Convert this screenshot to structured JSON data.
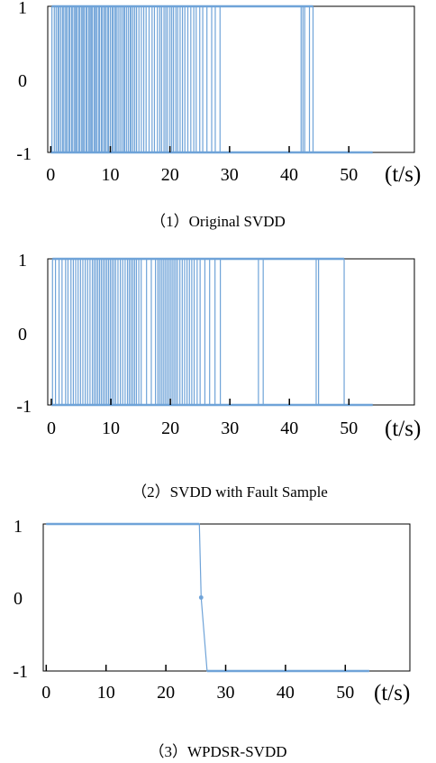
{
  "colors": {
    "series": "#6fa3d8",
    "axis": "#000000",
    "background": "#ffffff"
  },
  "chart_data": [
    {
      "type": "line",
      "caption": "（1）Original  SVDD",
      "xunit": "(t/s)",
      "xticks": [
        0,
        10,
        20,
        30,
        40,
        50
      ],
      "yticks": [
        1,
        0,
        -1
      ],
      "xlim": [
        -0.5,
        61
      ],
      "ylim": [
        -1,
        1
      ],
      "grid": false,
      "legend": "none",
      "x_end": 54,
      "baseline": -1,
      "spikes": [
        0.2,
        0.6,
        0.9,
        1.2,
        1.4,
        1.7,
        2.0,
        2.2,
        2.5,
        2.7,
        3.0,
        3.2,
        3.5,
        3.7,
        4.0,
        4.2,
        4.4,
        4.7,
        4.9,
        5.2,
        5.4,
        5.6,
        5.9,
        6.1,
        6.4,
        6.6,
        6.8,
        7.0,
        7.3,
        7.5,
        7.7,
        8.0,
        8.2,
        8.5,
        8.7,
        9.0,
        9.2,
        9.5,
        9.7,
        10.0,
        10.3,
        10.5,
        10.8,
        11.0,
        11.3,
        11.6,
        11.9,
        12.2,
        12.4,
        12.7,
        13.0,
        13.3,
        13.5,
        13.8,
        14.1,
        14.4,
        14.8,
        15.2,
        15.6,
        16.0,
        16.5,
        17.0,
        17.4,
        17.9,
        18.3,
        18.6,
        19.0,
        19.3,
        19.6,
        20.0,
        20.3,
        20.6,
        21.0,
        21.3,
        21.7,
        22.1,
        22.5,
        23.0,
        23.5,
        24.0,
        24.4,
        25.0,
        25.5,
        26.2,
        27.0,
        27.6,
        28.4,
        42.0,
        42.3,
        42.6,
        43.4,
        44.0
      ]
    },
    {
      "type": "line",
      "caption": "（2）SVDD  with  Fault  Sample",
      "xunit": "(t/s)",
      "xticks": [
        0,
        10,
        20,
        30,
        40,
        50
      ],
      "yticks": [
        1,
        0,
        -1
      ],
      "xlim": [
        -0.6,
        61
      ],
      "ylim": [
        -1,
        1
      ],
      "grid": false,
      "legend": "none",
      "x_end": 54,
      "baseline": -1,
      "spikes": [
        0.2,
        0.7,
        1.3,
        1.8,
        2.4,
        2.8,
        3.3,
        3.7,
        4.1,
        4.5,
        4.9,
        5.3,
        5.7,
        6.1,
        6.5,
        6.9,
        7.2,
        7.5,
        7.8,
        8.1,
        8.4,
        8.7,
        9.0,
        9.3,
        9.6,
        9.9,
        10.2,
        10.5,
        10.8,
        11.2,
        11.6,
        12.0,
        12.4,
        12.8,
        13.1,
        13.4,
        13.7,
        14.0,
        14.3,
        14.7,
        15.1,
        16.0,
        16.8,
        17.5,
        17.9,
        18.2,
        18.5,
        18.8,
        19.1,
        19.4,
        19.7,
        20.0,
        20.3,
        20.6,
        20.9,
        21.2,
        21.6,
        22.0,
        22.4,
        22.8,
        23.2,
        23.6,
        24.0,
        24.5,
        25.0,
        25.8,
        26.6,
        27.5,
        28.4,
        34.8,
        35.6,
        44.5,
        44.9,
        49.2
      ]
    },
    {
      "type": "line",
      "caption": "（3）WPDSR-SVDD",
      "xunit": "(t/s)",
      "xticks": [
        0,
        10,
        20,
        30,
        40,
        50
      ],
      "yticks": [
        1,
        0,
        -1
      ],
      "xlim": [
        -0.5,
        60.8
      ],
      "ylim": [
        -1,
        1
      ],
      "grid": false,
      "legend": "none",
      "x": [
        0,
        25.6,
        25.9,
        26.9,
        54
      ],
      "y": [
        1,
        1,
        0,
        -1,
        -1
      ],
      "markers": [
        {
          "x": 25.9,
          "y": 0
        }
      ]
    }
  ]
}
